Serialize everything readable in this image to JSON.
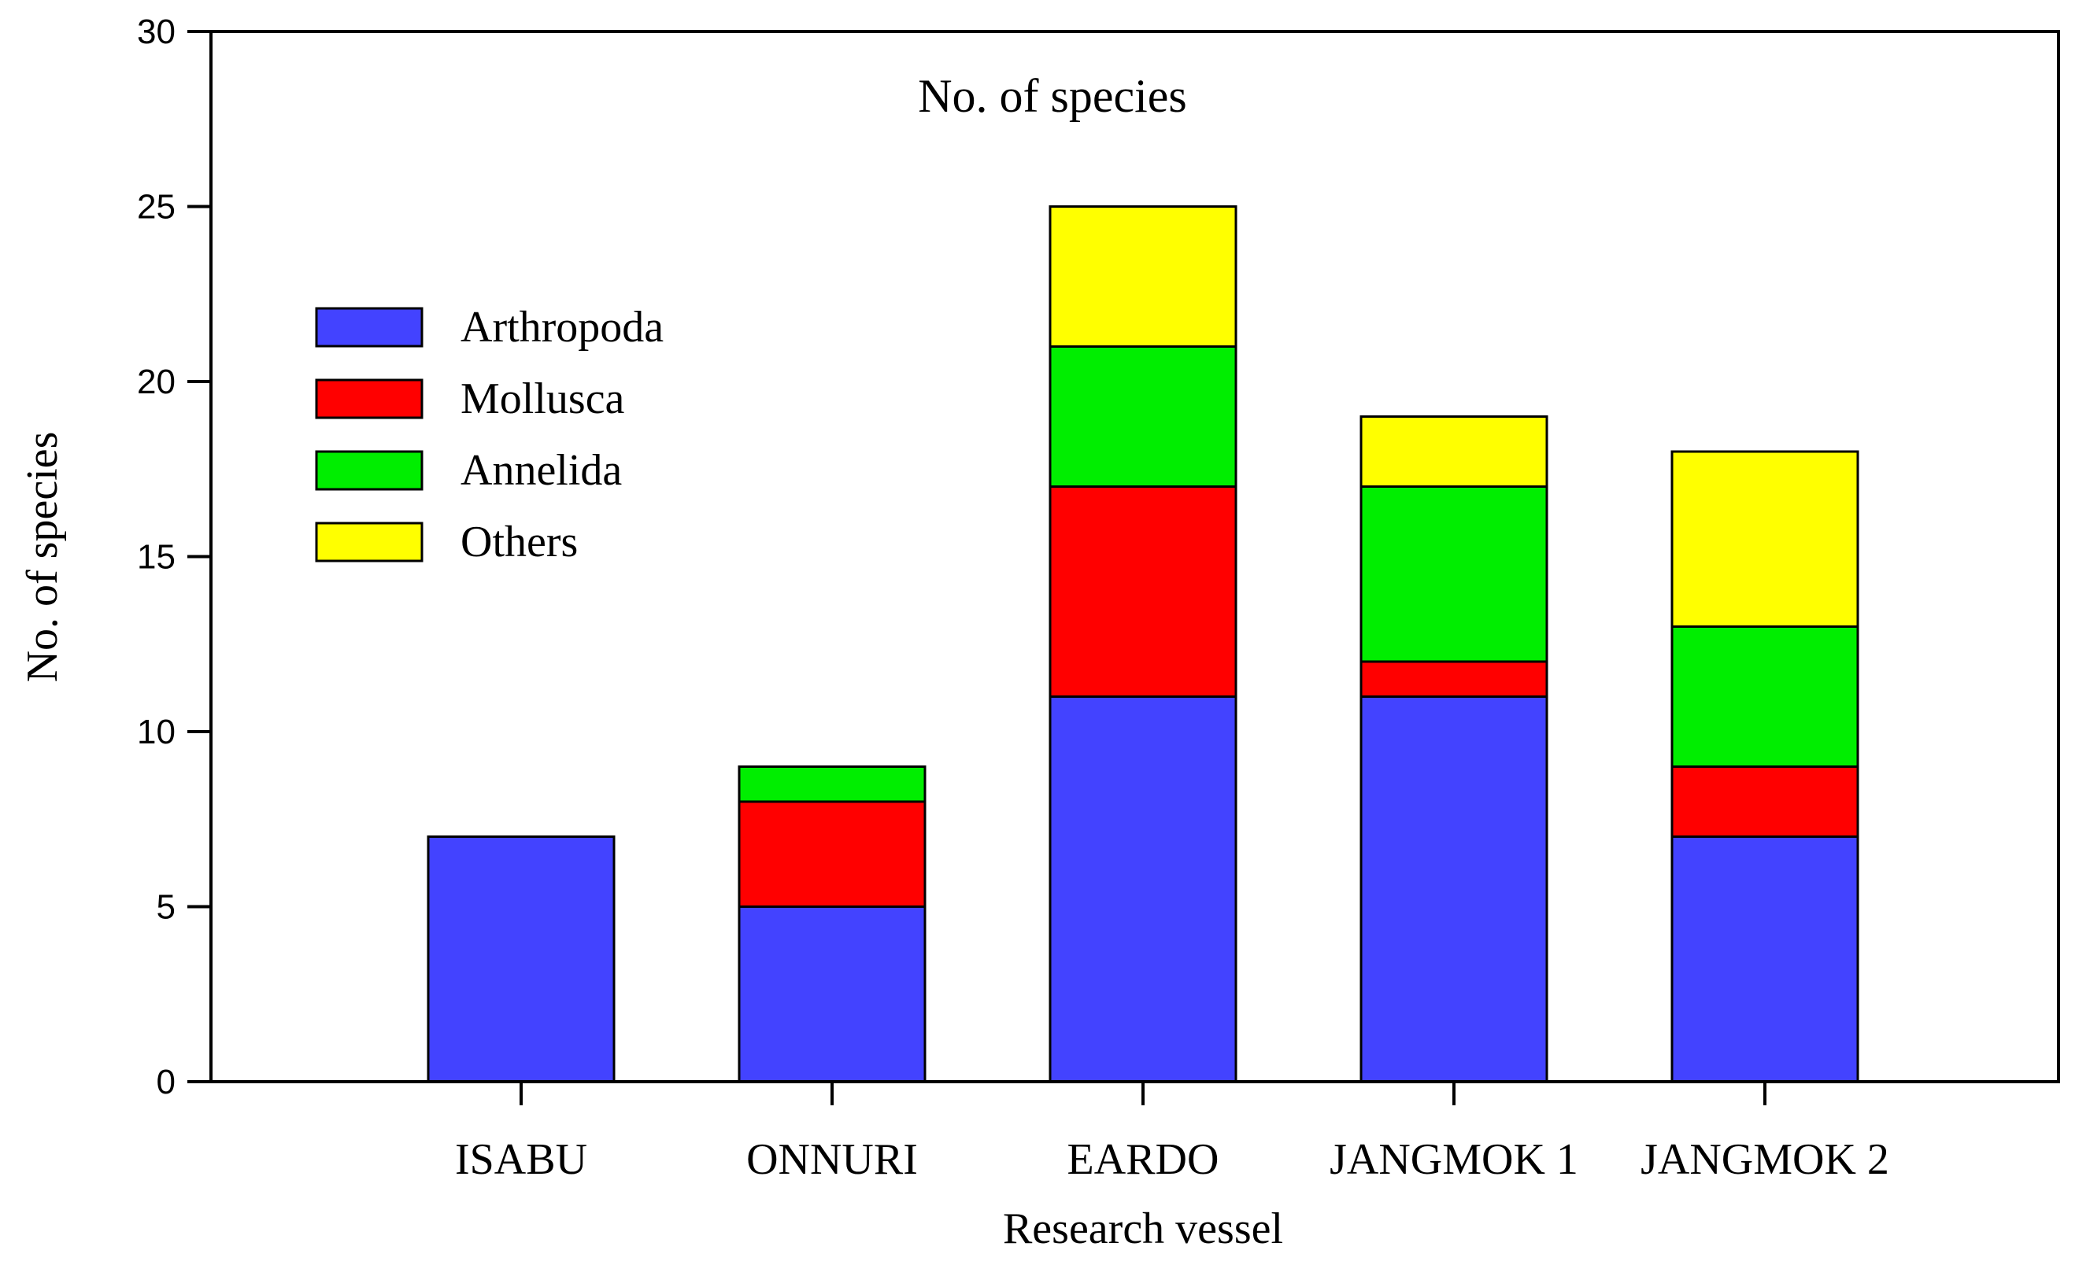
{
  "chart_data": {
    "type": "bar",
    "stacked": true,
    "title": "No. of species",
    "xlabel": "Research vessel",
    "ylabel": "No. of species",
    "ylim": [
      0,
      30
    ],
    "yticks": [
      0,
      5,
      10,
      15,
      20,
      25,
      30
    ],
    "grid": false,
    "legend_position": "upper-left",
    "categories": [
      "ISABU",
      "ONNURI",
      "EARDO",
      "JANGMOK 1",
      "JANGMOK 2"
    ],
    "series": [
      {
        "name": "Arthropoda",
        "color": "#4343ff",
        "values": [
          7,
          5,
          11,
          11,
          7
        ]
      },
      {
        "name": "Mollusca",
        "color": "#ff0000",
        "values": [
          0,
          3,
          6,
          1,
          2
        ]
      },
      {
        "name": "Annelida",
        "color": "#00ee00",
        "values": [
          0,
          1,
          4,
          5,
          4
        ]
      },
      {
        "name": "Others",
        "color": "#ffff00",
        "values": [
          0,
          0,
          4,
          2,
          5
        ]
      }
    ]
  }
}
